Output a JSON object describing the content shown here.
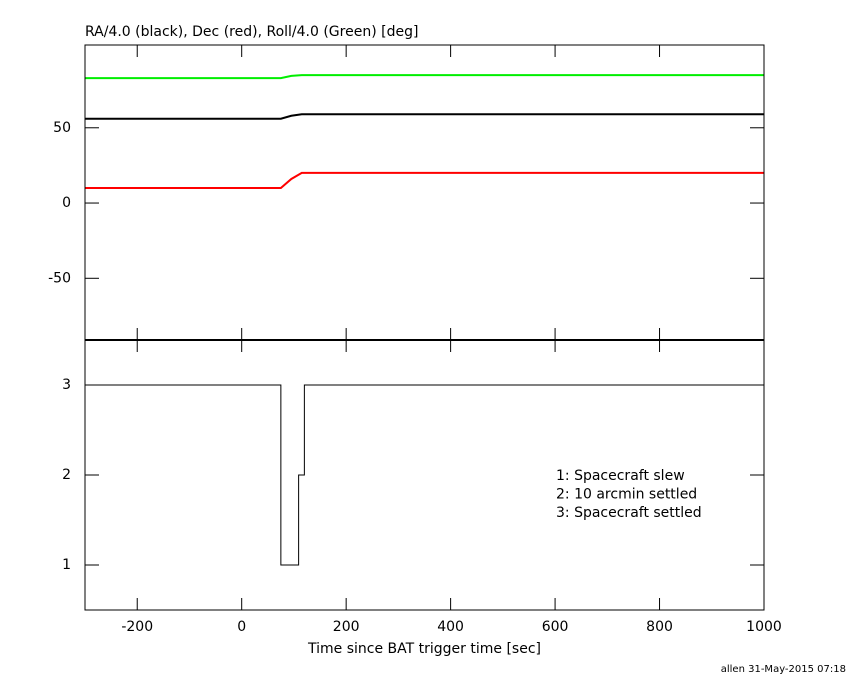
{
  "chart_data": [
    {
      "type": "line",
      "title": "RA/4.0 (black), Dec (red), Roll/4.0 (Green) [deg]",
      "x": [
        -300,
        75,
        95,
        115,
        1000
      ],
      "series": [
        {
          "color": "#00ee00",
          "values": [
            83,
            83,
            84.5,
            85,
            85
          ]
        },
        {
          "color": "#000000",
          "values": [
            56,
            56,
            58,
            59,
            59
          ]
        },
        {
          "color": "#ff0000",
          "values": [
            10,
            10,
            16,
            20,
            20
          ]
        }
      ],
      "xlim": [
        -300,
        1000
      ],
      "ylim": [
        -91,
        105
      ],
      "xticks": [
        -200,
        0,
        200,
        400,
        600,
        800,
        1000
      ],
      "xtick_labels": false,
      "yticks": [
        -50,
        0,
        50
      ]
    },
    {
      "type": "line",
      "step": "post",
      "xlabel": "Time since BAT trigger time [sec]",
      "x": [
        -300,
        75,
        109,
        120,
        1000
      ],
      "series": [
        {
          "color": "#000000",
          "values": [
            3,
            1,
            2,
            3,
            3
          ]
        }
      ],
      "annotations": [
        "1: Spacecraft slew",
        "2: 10 arcmin settled",
        "3: Spacecraft settled"
      ],
      "xlim": [
        -300,
        1000
      ],
      "ylim": [
        0.5,
        3.5
      ],
      "xticks": [
        -200,
        0,
        200,
        400,
        600,
        800,
        1000
      ],
      "xtick_labels": true,
      "yticks": [
        1,
        2,
        3
      ]
    }
  ],
  "footer": "allen 31-May-2015 07:18"
}
